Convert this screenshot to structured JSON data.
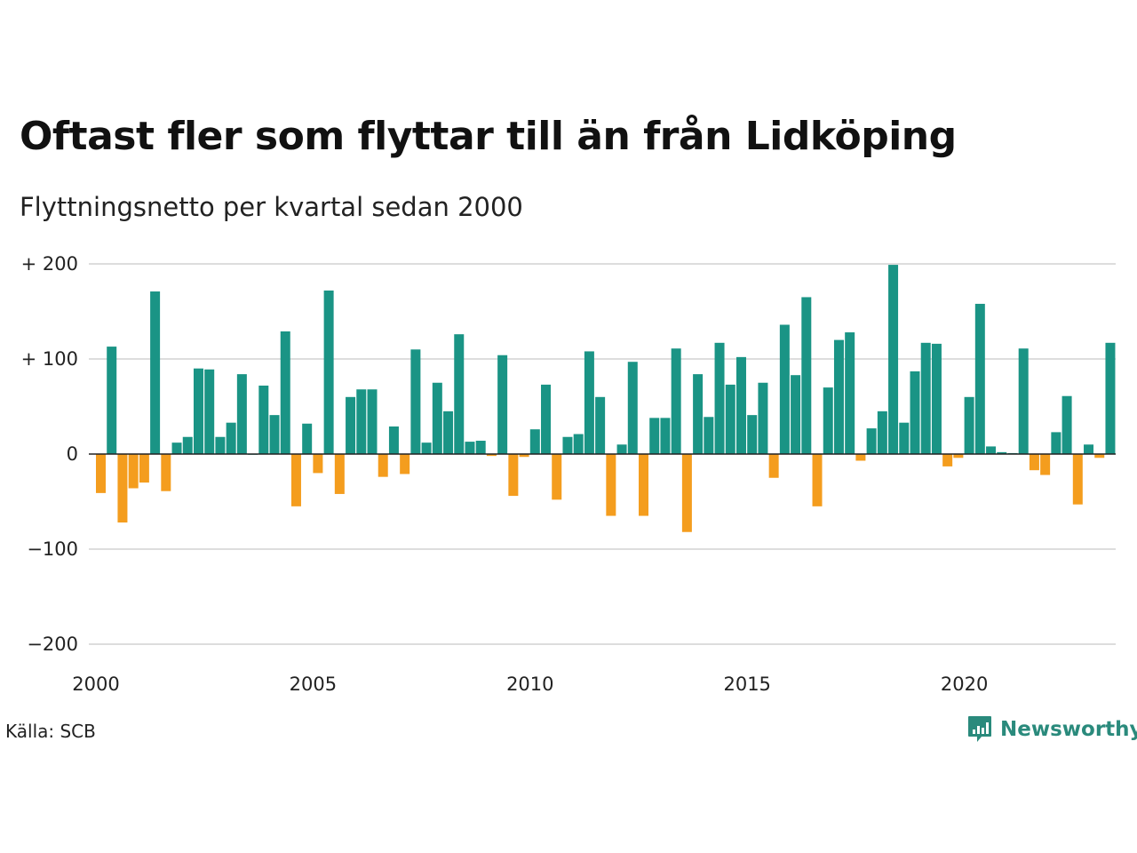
{
  "title": "Oftast fler som flyttar till än från Lidköping",
  "subtitle": "Flyttningsnetto per kvartal sedan 2000",
  "source": "Källa: SCB",
  "brand": {
    "name": "Newsworthy",
    "icon": "newsworthy-logo-icon",
    "color": "#2a8a7c"
  },
  "colors": {
    "positive": "#1a9485",
    "negative": "#f49d1e",
    "grid": "#dddddd",
    "zero": "#222222"
  },
  "chart_data": {
    "type": "bar",
    "title": "Oftast fler som flyttar till än från Lidköping",
    "subtitle": "Flyttningsnetto per kvartal sedan 2000",
    "xlabel": "",
    "ylabel": "",
    "ylim": [
      -200,
      200
    ],
    "yticks": [
      200,
      100,
      0,
      -100,
      -200
    ],
    "ytick_labels": [
      "+ 200",
      "+ 100",
      "0",
      "−100",
      "−200"
    ],
    "x_start": 2000,
    "xticks": [
      2000,
      2005,
      2010,
      2015,
      2020
    ],
    "xtick_labels": [
      "2000",
      "2005",
      "2010",
      "2015",
      "2020"
    ],
    "grid": true,
    "legend": "none",
    "series": [
      {
        "values": [
          -41,
          113,
          -72,
          -36,
          -30,
          171,
          -39,
          12,
          18,
          90,
          89,
          18,
          33,
          84,
          0,
          72,
          41,
          129,
          -55,
          32,
          -20,
          172,
          -42,
          60,
          68,
          68,
          -24,
          29,
          -21,
          110,
          12,
          75,
          45,
          126,
          13,
          14,
          -2,
          104,
          -44,
          -3,
          26,
          73,
          -48,
          18,
          21,
          108,
          60,
          -65,
          10,
          97,
          -65,
          38,
          38,
          111,
          -82,
          84,
          39,
          117,
          73,
          102,
          41,
          75,
          -25,
          136,
          83,
          165,
          -55,
          70,
          120,
          128,
          -7,
          27,
          45,
          199,
          33,
          87,
          117,
          116,
          -13,
          -4,
          60,
          158,
          8,
          2,
          1,
          111,
          -17,
          -22,
          23,
          61,
          -53,
          10,
          -4,
          117
        ]
      }
    ]
  }
}
